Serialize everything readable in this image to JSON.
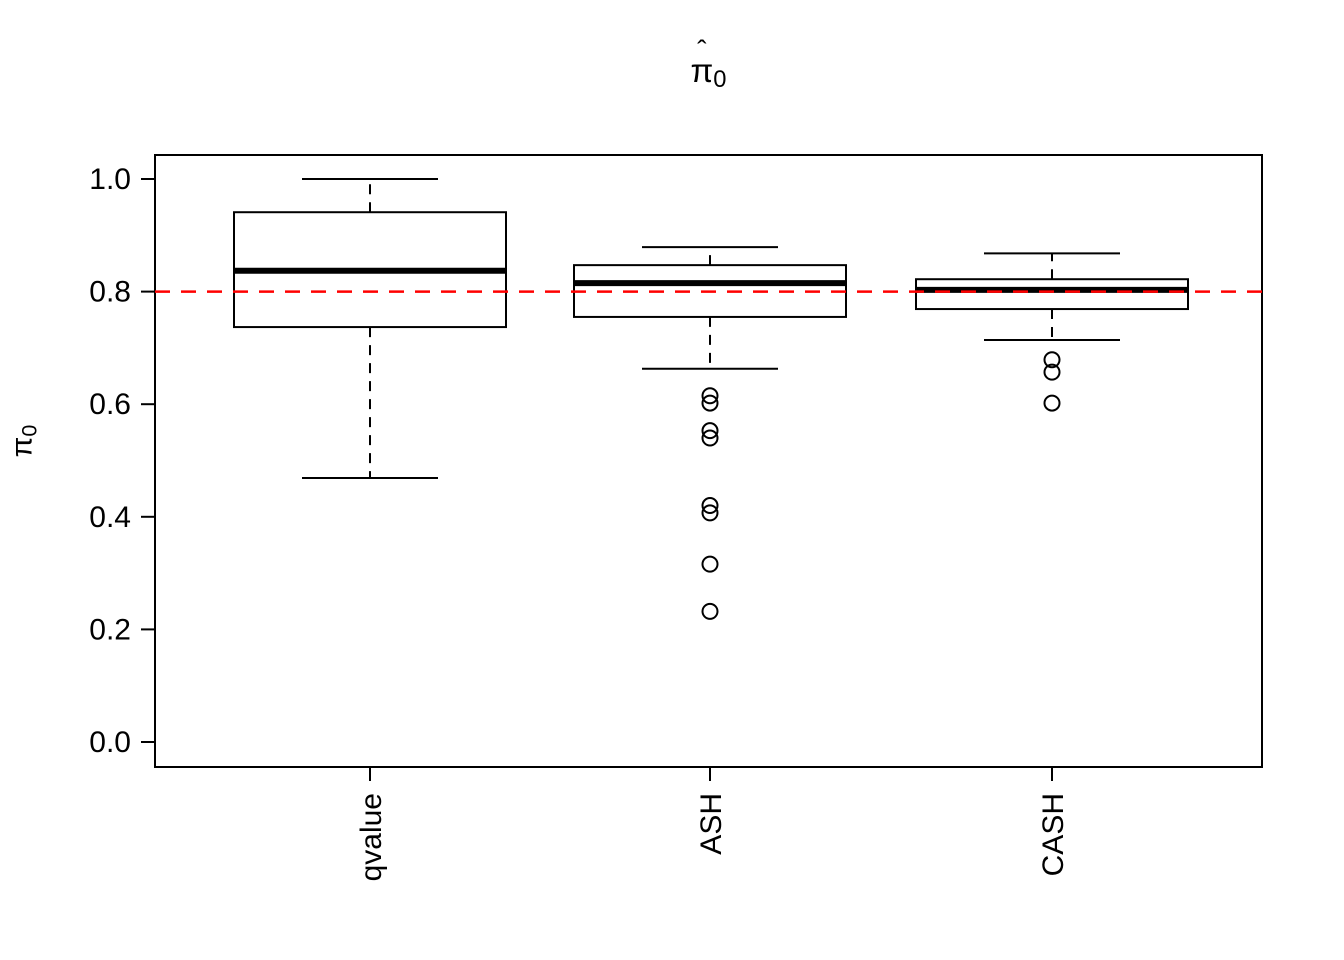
{
  "title": {
    "symbol": "π",
    "hat": "ˆ",
    "subscript": "0"
  },
  "y_axis": {
    "tick_labels": [
      "0.0",
      "0.2",
      "0.4",
      "0.6",
      "0.8",
      "1.0"
    ],
    "tick_values": [
      0.0,
      0.2,
      0.4,
      0.6,
      0.8,
      1.0
    ]
  },
  "chart_data": {
    "type": "boxplot",
    "title": "π̂0",
    "ylabel": "π̂0",
    "categories": [
      "qvalue",
      "ASH",
      "CASH"
    ],
    "ylim": [
      0.0,
      1.0
    ],
    "yticks": [
      0.0,
      0.2,
      0.4,
      0.6,
      0.8,
      1.0
    ],
    "grid": false,
    "legend": "none",
    "reference_line": {
      "y": 0.8,
      "color": "#ff0000",
      "style": "dashed"
    },
    "series": [
      {
        "name": "qvalue",
        "whisker_low": 0.469,
        "q1": 0.737,
        "median": 0.837,
        "q3": 0.941,
        "whisker_high": 1.0,
        "outliers": []
      },
      {
        "name": "ASH",
        "whisker_low": 0.663,
        "q1": 0.755,
        "median": 0.815,
        "q3": 0.847,
        "whisker_high": 0.879,
        "outliers": [
          0.615,
          0.602,
          0.553,
          0.54,
          0.42,
          0.407,
          0.316,
          0.232
        ]
      },
      {
        "name": "CASH",
        "whisker_low": 0.714,
        "q1": 0.769,
        "median": 0.803,
        "q3": 0.822,
        "whisker_high": 0.868,
        "outliers": [
          0.679,
          0.657,
          0.602
        ]
      }
    ]
  }
}
